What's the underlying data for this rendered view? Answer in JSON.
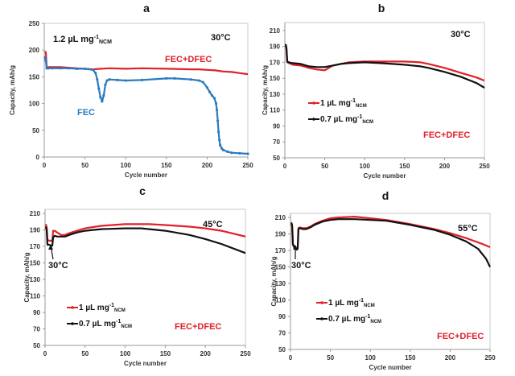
{
  "chart_data": [
    {
      "type": "line",
      "panel": "a",
      "title": "a",
      "xlabel": "Cycle number",
      "ylabel": "Capacity, mAh/g",
      "xlim": [
        0,
        250
      ],
      "ylim": [
        0,
        250
      ],
      "xticks": [
        0,
        50,
        100,
        150,
        200,
        250
      ],
      "yticks": [
        0,
        50,
        100,
        150,
        200,
        250
      ],
      "annotations": [
        {
          "text": "1.2 µL mg",
          "sup": "-1",
          "sub": "NCM",
          "color": "#111111"
        },
        {
          "text": "30°C",
          "color": "#111111"
        },
        {
          "text": "FEC+DFEC",
          "color": "#e0202a"
        },
        {
          "text": "FEC",
          "color": "#2a7bc0"
        }
      ],
      "series": [
        {
          "name": "FEC+DFEC",
          "color": "#e0202a",
          "x": [
            1,
            2,
            3,
            5,
            10,
            20,
            30,
            40,
            50,
            60,
            70,
            80,
            100,
            120,
            150,
            180,
            190,
            200,
            210,
            220,
            230,
            240,
            250
          ],
          "y": [
            198,
            195,
            168,
            168,
            168,
            168,
            167,
            166,
            165,
            164,
            165,
            166,
            165,
            166,
            165,
            164,
            164,
            163,
            162,
            160,
            159,
            157,
            155
          ]
        },
        {
          "name": "FEC",
          "color": "#2a7bc0",
          "x": [
            1,
            2,
            3,
            5,
            10,
            20,
            30,
            40,
            50,
            60,
            63,
            65,
            67,
            69,
            71,
            73,
            75,
            77,
            80,
            90,
            100,
            120,
            150,
            160,
            180,
            190,
            195,
            200,
            203,
            206,
            209,
            211,
            212,
            213,
            214,
            215,
            216,
            218,
            220,
            225,
            230,
            240,
            250
          ],
          "y": [
            186,
            180,
            166,
            166,
            166,
            166,
            166,
            165,
            165,
            163,
            157,
            145,
            128,
            112,
            104,
            115,
            135,
            143,
            145,
            144,
            143,
            144,
            147,
            147,
            145,
            143,
            140,
            130,
            122,
            115,
            110,
            100,
            88,
            68,
            47,
            32,
            22,
            16,
            13,
            10,
            8,
            7,
            6
          ]
        }
      ]
    },
    {
      "type": "line",
      "panel": "b",
      "title": "b",
      "xlabel": "Cycle number",
      "ylabel": "Capacity, mAh/g",
      "xlim": [
        0,
        250
      ],
      "ylim": [
        50,
        220
      ],
      "xticks": [
        0,
        50,
        100,
        150,
        200,
        250
      ],
      "yticks": [
        50,
        70,
        90,
        110,
        130,
        150,
        170,
        190,
        210
      ],
      "annotations": [
        {
          "text": "30°C",
          "color": "#111111"
        },
        {
          "text": "FEC+DFEC",
          "color": "#e0202a"
        }
      ],
      "legend": [
        {
          "label": "1  µL mg",
          "sup": "-1",
          "sub": "NCM",
          "color": "#e0202a"
        },
        {
          "label": "0.7  µL mg",
          "sup": "-1",
          "sub": "NCM",
          "color": "#111111"
        }
      ],
      "series": [
        {
          "name": "1 µL mg-1 NCM",
          "color": "#e0202a",
          "x": [
            1,
            2,
            3,
            5,
            10,
            20,
            30,
            40,
            50,
            55,
            60,
            70,
            80,
            100,
            120,
            150,
            170,
            180,
            200,
            220,
            240,
            250
          ],
          "y": [
            192,
            186,
            170,
            169,
            167,
            166,
            163,
            161,
            160,
            163,
            166,
            168,
            170,
            171,
            171,
            171,
            170,
            168,
            163,
            157,
            151,
            147
          ]
        },
        {
          "name": "0.7 µL mg-1 NCM",
          "color": "#111111",
          "x": [
            1,
            2,
            3,
            5,
            10,
            20,
            30,
            40,
            50,
            60,
            70,
            80,
            100,
            120,
            150,
            170,
            180,
            200,
            220,
            240,
            250
          ],
          "y": [
            193,
            188,
            171,
            170,
            169,
            168,
            165,
            164,
            164,
            166,
            168,
            169,
            170,
            169,
            167,
            165,
            163,
            158,
            152,
            144,
            138
          ]
        }
      ]
    },
    {
      "type": "line",
      "panel": "c",
      "title": "c",
      "xlabel": "Cycle number",
      "ylabel": "Capacity, mAh/g",
      "xlim": [
        0,
        250
      ],
      "ylim": [
        50,
        215
      ],
      "xticks": [
        0,
        50,
        100,
        150,
        200,
        250
      ],
      "yticks": [
        50,
        70,
        90,
        110,
        130,
        150,
        170,
        190,
        210
      ],
      "annotations": [
        {
          "text": "45°C",
          "color": "#111111"
        },
        {
          "text": "30°C",
          "color": "#111111"
        },
        {
          "text": "FEC+DFEC",
          "color": "#e0202a"
        }
      ],
      "legend": [
        {
          "label": "1  µL mg",
          "sup": "-1",
          "sub": "NCM",
          "color": "#e0202a"
        },
        {
          "label": "0.7 µL mg",
          "sup": "-1",
          "sub": "NCM",
          "color": "#111111"
        }
      ],
      "series": [
        {
          "name": "1 µL mg-1 NCM",
          "color": "#e0202a",
          "x": [
            1,
            2,
            3,
            5,
            8,
            9,
            10,
            12,
            15,
            20,
            25,
            30,
            40,
            50,
            70,
            100,
            130,
            150,
            180,
            200,
            220,
            250
          ],
          "y": [
            197,
            193,
            178,
            177,
            177,
            176,
            189,
            189,
            187,
            184,
            184,
            186,
            189,
            192,
            195,
            197,
            197,
            196,
            194,
            192,
            189,
            182
          ]
        },
        {
          "name": "0.7 µL mg-1 NCM",
          "color": "#111111",
          "x": [
            1,
            2,
            3,
            5,
            8,
            9,
            10,
            12,
            15,
            20,
            25,
            30,
            40,
            50,
            70,
            100,
            120,
            150,
            180,
            200,
            220,
            250
          ],
          "y": [
            194,
            190,
            172,
            172,
            171,
            171,
            181,
            183,
            182,
            182,
            182,
            184,
            187,
            189,
            191,
            192,
            192,
            189,
            184,
            179,
            173,
            162
          ]
        }
      ]
    },
    {
      "type": "line",
      "panel": "d",
      "title": "d",
      "xlabel": "Cycle number",
      "ylabel": "Capacity, mAh/g",
      "xlim": [
        0,
        250
      ],
      "ylim": [
        50,
        215
      ],
      "xticks": [
        0,
        50,
        100,
        150,
        200,
        250
      ],
      "yticks": [
        50,
        70,
        90,
        110,
        130,
        150,
        170,
        190,
        210
      ],
      "annotations": [
        {
          "text": "55°C",
          "color": "#111111"
        },
        {
          "text": "30°C",
          "color": "#111111"
        },
        {
          "text": "FEC+DFEC",
          "color": "#e0202a"
        }
      ],
      "legend": [
        {
          "label": "1  µL mg",
          "sup": "-1",
          "sub": "NCM",
          "color": "#e0202a"
        },
        {
          "label": "0.7  µL mg",
          "sup": "-1",
          "sub": "NCM",
          "color": "#111111"
        }
      ],
      "series": [
        {
          "name": "1 µL mg-1 NCM",
          "color": "#e0202a",
          "x": [
            1,
            2,
            3,
            5,
            8,
            9,
            10,
            12,
            15,
            20,
            25,
            30,
            40,
            50,
            60,
            80,
            100,
            120,
            150,
            180,
            200,
            220,
            240,
            250
          ],
          "y": [
            202,
            200,
            178,
            174,
            172,
            173,
            197,
            198,
            197,
            197,
            199,
            202,
            206,
            209,
            210,
            211,
            209,
            207,
            202,
            196,
            191,
            185,
            178,
            174
          ]
        },
        {
          "name": "0.7 µL mg-1 NCM",
          "color": "#111111",
          "x": [
            1,
            2,
            3,
            5,
            8,
            9,
            10,
            12,
            15,
            20,
            25,
            30,
            40,
            50,
            60,
            80,
            100,
            120,
            150,
            180,
            200,
            220,
            235,
            245,
            250
          ],
          "y": [
            204,
            201,
            177,
            173,
            171,
            172,
            196,
            197,
            196,
            196,
            198,
            201,
            205,
            207,
            208,
            208,
            207,
            206,
            201,
            195,
            189,
            181,
            172,
            160,
            150
          ]
        }
      ]
    }
  ]
}
